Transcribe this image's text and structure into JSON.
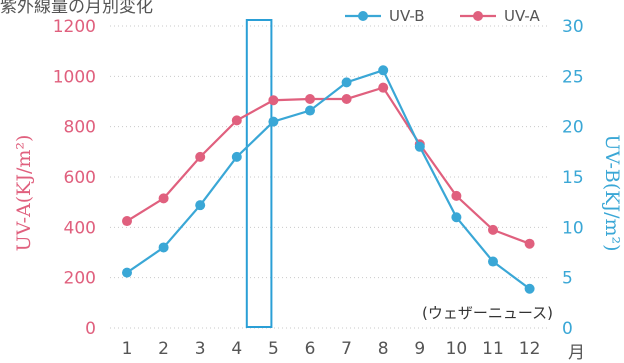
{
  "chart_data": {
    "type": "line",
    "title": "紫外線量の月別変化",
    "x": [
      1,
      2,
      3,
      4,
      5,
      6,
      7,
      8,
      9,
      10,
      11,
      12
    ],
    "x_tick_labels": [
      "1",
      "2",
      "3",
      "4",
      "5",
      "6",
      "7",
      "8",
      "9",
      "10",
      "11",
      "12"
    ],
    "x_unit": "月",
    "y_left": {
      "label": "UV-A(KJ/m²)",
      "range": [
        0,
        1200
      ],
      "ticks": [
        "0",
        "200",
        "400",
        "600",
        "800",
        "1000",
        "1200"
      ],
      "color": "#e0607e"
    },
    "y_right": {
      "label": "UV-B(KJ/m²)",
      "range": [
        0,
        30
      ],
      "ticks": [
        "0",
        "5",
        "10",
        "15",
        "20",
        "25",
        "30"
      ],
      "color": "#3aa7d6"
    },
    "series": [
      {
        "name": "UV-A",
        "axis": "left",
        "color": "#e0607e",
        "values": [
          425,
          515,
          680,
          825,
          905,
          910,
          910,
          955,
          730,
          525,
          390,
          335
        ]
      },
      {
        "name": "UV-B",
        "axis": "right",
        "color": "#3aa7d6",
        "values": [
          5.5,
          8.0,
          12.2,
          17.0,
          20.5,
          21.6,
          24.4,
          25.6,
          18.0,
          11.0,
          6.6,
          3.9
        ]
      }
    ],
    "highlight": {
      "month_range": [
        4,
        5
      ],
      "color": "#2a9fd6"
    },
    "legend": {
      "position": "top-right",
      "items": [
        "UV-B",
        "UV-A"
      ]
    },
    "source_note": "(ウェザーニュース)",
    "grid": "horizontal-dotted"
  }
}
